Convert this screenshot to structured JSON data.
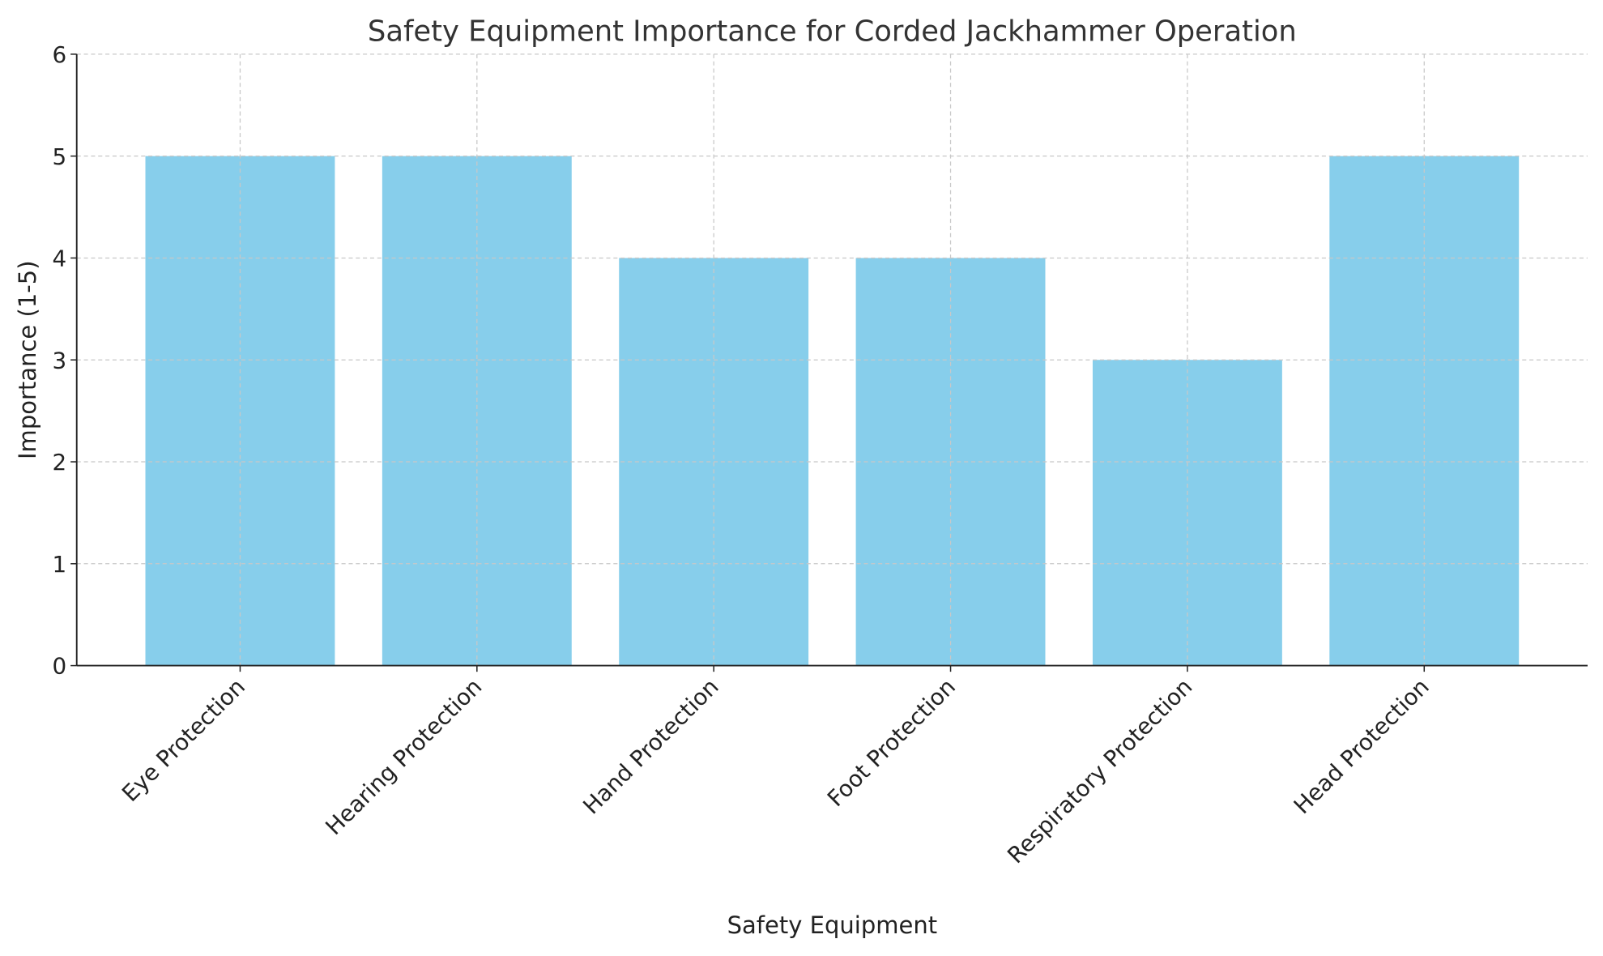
{
  "chart_data": {
    "type": "bar",
    "title": "Safety Equipment Importance for Corded Jackhammer Operation",
    "xlabel": "Safety Equipment",
    "ylabel": "Importance (1-5)",
    "categories": [
      "Eye Protection",
      "Hearing Protection",
      "Hand Protection",
      "Foot Protection",
      "Respiratory Protection",
      "Head Protection"
    ],
    "values": [
      5,
      5,
      4,
      4,
      3,
      5
    ],
    "ylim": [
      0,
      6
    ],
    "yticks": [
      "0",
      "1",
      "2",
      "3",
      "4",
      "5",
      "6"
    ],
    "grid": true,
    "grid_style": "dashed",
    "bar_color": "#87CEEB",
    "grid_color": "#c8c8c8"
  }
}
